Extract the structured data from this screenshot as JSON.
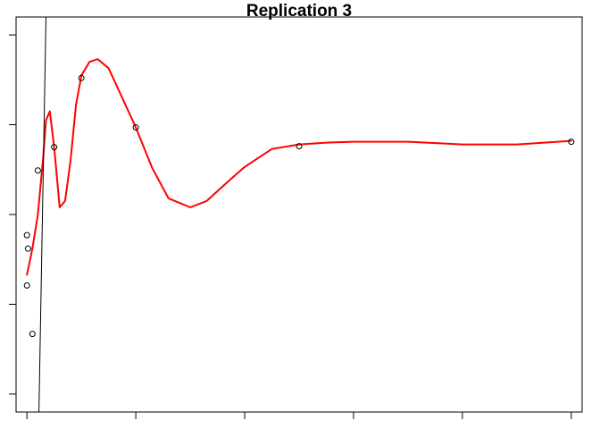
{
  "chart_data": {
    "type": "line",
    "title": "Replication 3",
    "xlabel": "",
    "ylabel": "",
    "xlim": [
      -0.2,
      10.2
    ],
    "ylim": [
      -0.2,
      4.2
    ],
    "xticks": [
      0,
      2,
      4,
      6,
      8,
      10
    ],
    "yticks": [
      0,
      1,
      2,
      3,
      4
    ],
    "tick_labels_shown": false,
    "points": [
      {
        "x": 0.0,
        "y": 1.77
      },
      {
        "x": 0.02,
        "y": 1.62
      },
      {
        "x": 0.0,
        "y": 1.21
      },
      {
        "x": 0.1,
        "y": 0.67
      },
      {
        "x": 0.2,
        "y": 2.49
      },
      {
        "x": 0.5,
        "y": 2.75
      },
      {
        "x": 1.0,
        "y": 3.52
      },
      {
        "x": 2.0,
        "y": 2.97
      },
      {
        "x": 5.0,
        "y": 2.76
      },
      {
        "x": 10.0,
        "y": 2.81
      }
    ],
    "series": [
      {
        "color": "#ff0000",
        "x": [
          0.0,
          0.1,
          0.2,
          0.3,
          0.35,
          0.42,
          0.5,
          0.6,
          0.7,
          0.8,
          0.9,
          1.0,
          1.15,
          1.3,
          1.5,
          1.75,
          2.0,
          2.3,
          2.6,
          3.0,
          3.3,
          3.7,
          4.0,
          4.5,
          5.0,
          5.5,
          6.0,
          7.0,
          8.0,
          9.0,
          10.0
        ],
        "y": [
          1.33,
          1.62,
          2.0,
          2.65,
          3.05,
          3.15,
          2.75,
          2.08,
          2.15,
          2.6,
          3.22,
          3.55,
          3.7,
          3.73,
          3.63,
          3.3,
          2.97,
          2.52,
          2.18,
          2.08,
          2.15,
          2.37,
          2.53,
          2.73,
          2.78,
          2.8,
          2.81,
          2.81,
          2.78,
          2.78,
          2.82
        ]
      },
      {
        "color": "#000000",
        "x": [
          0.22,
          0.35
        ],
        "y": [
          -0.2,
          4.2
        ]
      }
    ]
  }
}
